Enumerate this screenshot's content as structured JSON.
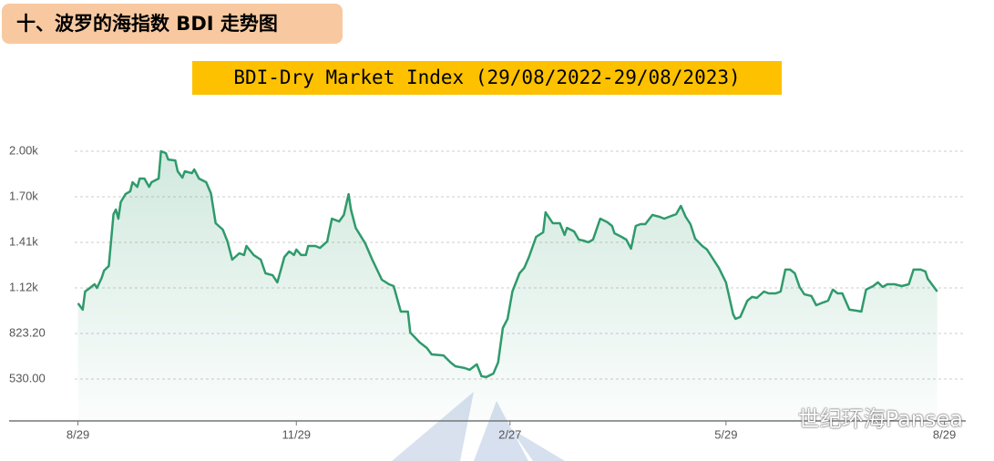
{
  "header": {
    "title": "十、波罗的海指数 BDI 走势图"
  },
  "watermark": "世纪环海Pansea",
  "chart_data": {
    "type": "line",
    "title": "BDI-Dry Market Index (29/08/2022-29/08/2023)",
    "xlim": [
      -29,
      374
    ],
    "ylim": [
      260,
      2090
    ],
    "xticks": [
      {
        "value": 0,
        "label": "8/29"
      },
      {
        "value": 92,
        "label": "11/29"
      },
      {
        "value": 182,
        "label": "2/27"
      },
      {
        "value": 273,
        "label": "5/29"
      },
      {
        "value": 365,
        "label": "8/29"
      }
    ],
    "yticks": [
      {
        "value": 530,
        "label": "530.00"
      },
      {
        "value": 823.2,
        "label": "823.20"
      },
      {
        "value": 1116.4,
        "label": "1.12k"
      },
      {
        "value": 1409.6,
        "label": "1.41k"
      },
      {
        "value": 1702.8,
        "label": "1.70k"
      },
      {
        "value": 1996,
        "label": "2.00k"
      }
    ],
    "grid": true,
    "x": [
      0,
      2,
      3,
      5,
      7,
      8,
      10,
      11,
      13,
      15,
      16,
      17,
      18,
      20,
      22,
      23,
      25,
      26,
      28,
      30,
      31,
      34,
      35,
      37,
      38,
      41,
      42,
      44,
      45,
      48,
      49,
      51,
      54,
      56,
      58,
      61,
      63,
      65,
      68,
      70,
      71,
      74,
      77,
      79,
      82,
      84,
      87,
      89,
      91,
      92,
      94,
      96,
      97,
      100,
      102,
      105,
      107,
      110,
      112,
      114,
      115,
      117,
      121,
      124,
      128,
      131,
      133,
      136,
      139,
      140,
      144,
      147,
      149,
      154,
      157,
      159,
      163,
      165,
      168,
      170,
      172,
      175,
      177,
      179,
      181,
      183,
      186,
      188,
      190,
      193,
      196,
      197,
      200,
      203,
      205,
      206,
      209,
      211,
      213,
      215,
      217,
      220,
      223,
      225,
      226,
      229,
      231,
      233,
      235,
      237,
      239,
      242,
      245,
      247,
      249,
      252,
      254,
      256,
      258,
      260,
      263,
      265,
      267,
      270,
      273,
      276,
      277,
      279,
      282,
      284,
      286,
      289,
      291,
      294,
      296,
      298,
      300,
      302,
      304,
      306,
      309,
      311,
      314,
      316,
      318,
      320,
      322,
      325,
      328,
      330,
      332,
      335,
      337,
      339,
      341,
      344,
      347,
      350,
      352,
      355,
      357,
      358,
      362
    ],
    "series": [
      {
        "name": "BDI",
        "color": "#2f9a6c",
        "values": [
          1017,
          976,
          1093,
          1116,
          1140,
          1116,
          1181,
          1228,
          1257,
          1591,
          1621,
          1562,
          1668,
          1720,
          1738,
          1797,
          1767,
          1820,
          1820,
          1767,
          1797,
          1820,
          1996,
          1984,
          1943,
          1937,
          1867,
          1826,
          1867,
          1855,
          1879,
          1820,
          1797,
          1726,
          1533,
          1492,
          1415,
          1298,
          1339,
          1328,
          1386,
          1328,
          1298,
          1210,
          1198,
          1152,
          1316,
          1351,
          1328,
          1363,
          1328,
          1328,
          1386,
          1386,
          1374,
          1415,
          1562,
          1544,
          1586,
          1720,
          1621,
          1503,
          1404,
          1298,
          1169,
          1140,
          1128,
          964,
          964,
          829,
          765,
          729,
          688,
          682,
          636,
          612,
          600,
          589,
          624,
          548,
          542,
          565,
          636,
          858,
          917,
          1093,
          1210,
          1245,
          1316,
          1445,
          1474,
          1603,
          1533,
          1533,
          1457,
          1503,
          1480,
          1427,
          1421,
          1410,
          1427,
          1562,
          1539,
          1515,
          1468,
          1445,
          1427,
          1369,
          1515,
          1527,
          1527,
          1586,
          1574,
          1562,
          1574,
          1591,
          1644,
          1574,
          1527,
          1433,
          1386,
          1363,
          1316,
          1245,
          1152,
          946,
          917,
          929,
          1034,
          1058,
          1052,
          1093,
          1081,
          1081,
          1093,
          1234,
          1234,
          1210,
          1122,
          1075,
          1064,
          1005,
          1023,
          1034,
          1105,
          1081,
          1081,
          976,
          970,
          964,
          1105,
          1128,
          1152,
          1122,
          1140,
          1140,
          1128,
          1140,
          1234,
          1234,
          1222,
          1175,
          1093
        ]
      }
    ]
  }
}
